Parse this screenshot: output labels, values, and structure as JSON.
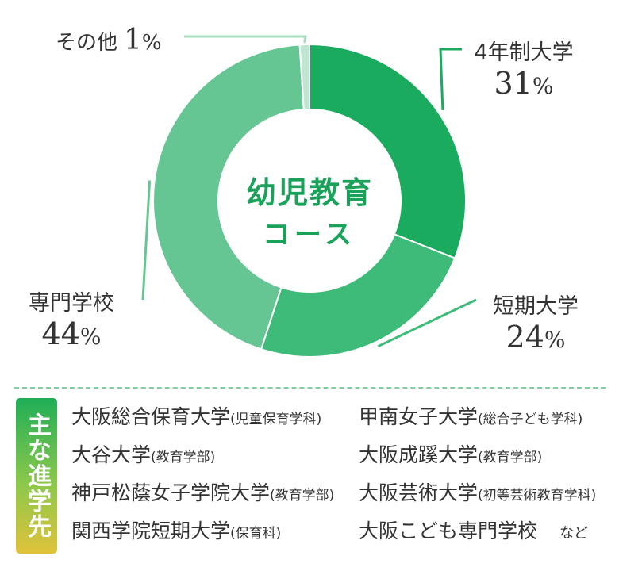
{
  "chart_data": {
    "type": "pie",
    "style": "donut",
    "center_title": [
      "幼児教育",
      "コース"
    ],
    "slices": [
      {
        "label": "4年制大学",
        "value": 31,
        "color": "#1aab5e"
      },
      {
        "label": "短期大学",
        "value": 24,
        "color": "#3fbb79"
      },
      {
        "label": "専門学校",
        "value": 44,
        "color": "#66c693"
      },
      {
        "label": "その他",
        "value": 1,
        "color": "#bfe6d0"
      }
    ],
    "pct_unit": "%"
  },
  "destinations": {
    "badge": "主な進学先",
    "items": [
      {
        "school": "大阪総合保育大学",
        "dept": "(児童保育学科)"
      },
      {
        "school": "甲南女子大学",
        "dept": "(総合子ども学科)"
      },
      {
        "school": "大谷大学",
        "dept": "(教育学部)"
      },
      {
        "school": "大阪成蹊大学",
        "dept": "(教育学部)"
      },
      {
        "school": "神戸松蔭女子学院大学",
        "dept": "(教育学部)"
      },
      {
        "school": "大阪芸術大学",
        "dept": "(初等芸術教育学科)"
      },
      {
        "school": "関西学院短期大学",
        "dept": "(保育科)"
      },
      {
        "school": "大阪こども専門学校",
        "dept": "",
        "suffix": "など"
      }
    ]
  }
}
